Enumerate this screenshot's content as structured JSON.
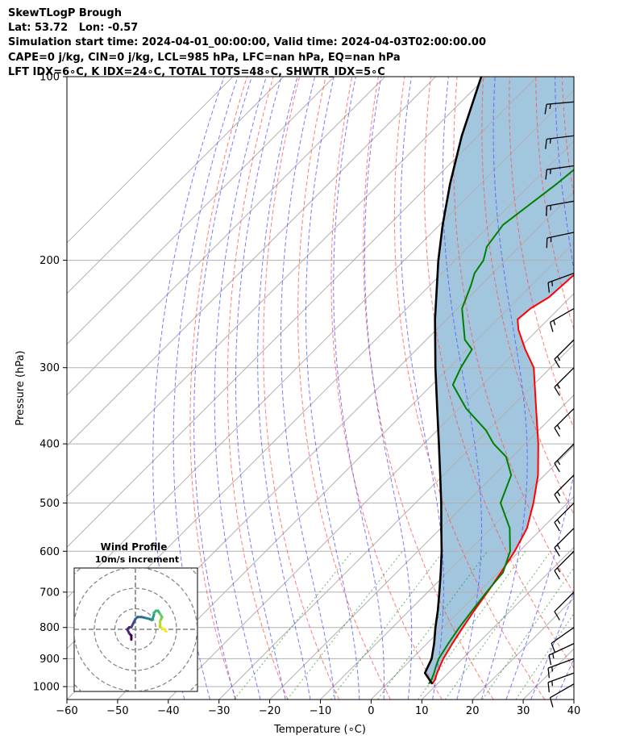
{
  "header": {
    "lines": [
      "SkewTLogP Brough",
      "Lat: 53.72   Lon: -0.57",
      "Simulation start time: 2024-04-01_00:00:00, Valid time: 2024-04-03T02:00:00.00",
      "CAPE=0 j/kg, CIN=0 j/kg, LCL=985 hPa, LFC=nan hPa, EQ=nan hPa",
      "LFT IDX=6∘C, K IDX=24∘C, TOTAL TOTS=48∘C, SHWTR_IDX=5∘C"
    ]
  },
  "chart_data": [
    {
      "type": "line",
      "subtype": "skew-t log-p",
      "xlabel": "Temperature (∘C)",
      "ylabel": "Pressure (hPa)",
      "xlim": [
        -60,
        40
      ],
      "ylim": [
        1050,
        100
      ],
      "y_scale": "log",
      "x_ticks": [
        -60,
        -50,
        -40,
        -30,
        -20,
        -10,
        0,
        10,
        20,
        30,
        40
      ],
      "y_ticks": [
        1000,
        900,
        800,
        700,
        600,
        500,
        400,
        300,
        200,
        100
      ],
      "grid": true,
      "series": [
        {
          "key": "temperature",
          "color": "#ff0000",
          "p": [
            990,
            975,
            950,
            925,
            900,
            850,
            800,
            750,
            700,
            650,
            600,
            550,
            500,
            450,
            400,
            350,
            300,
            280,
            260,
            250,
            240,
            230,
            200,
            175,
            150,
            125,
            100
          ],
          "t": [
            9,
            8.7,
            7.8,
            7.0,
            6.2,
            5.0,
            3.9,
            2.8,
            1.8,
            0.6,
            -0.9,
            -3.0,
            -6.7,
            -11.3,
            -17.4,
            -24.8,
            -33.3,
            -38.6,
            -43.8,
            -46.0,
            -45.6,
            -44.2,
            -43.3,
            -45.2,
            -47.5,
            -51.0,
            -55.0
          ]
        },
        {
          "key": "dewpoint",
          "color": "#008000",
          "p": [
            990,
            975,
            950,
            925,
            900,
            850,
            800,
            750,
            700,
            650,
            600,
            550,
            500,
            450,
            420,
            400,
            380,
            350,
            320,
            300,
            280,
            270,
            240,
            220,
            210,
            200,
            190,
            175,
            150,
            125,
            100
          ],
          "t": [
            8.3,
            8.0,
            7.2,
            6.2,
            5.3,
            4.2,
            3.2,
            2.4,
            1.6,
            1.0,
            -1.8,
            -6.4,
            -13.2,
            -16.6,
            -21.2,
            -26.2,
            -30.4,
            -38.6,
            -45.9,
            -47.7,
            -49.1,
            -52.4,
            -59.1,
            -61.9,
            -63.6,
            -64.4,
            -66.4,
            -67.5,
            -65.0,
            -63.0,
            -60.0
          ]
        },
        {
          "key": "parcel",
          "color": "#000000",
          "p": [
            990,
            950,
            900,
            850,
            800,
            750,
            700,
            650,
            600,
            550,
            500,
            450,
            400,
            350,
            300,
            250,
            200,
            175,
            150,
            125,
            100
          ],
          "t": [
            9,
            5.4,
            3.9,
            1.4,
            -1.5,
            -4.4,
            -7.7,
            -11.3,
            -15.3,
            -19.9,
            -24.9,
            -30.6,
            -37.0,
            -44.3,
            -52.7,
            -62.3,
            -73.3,
            -79.4,
            -86.0,
            -93.2,
            -101.0
          ]
        }
      ],
      "shaded_area": {
        "between": [
          "parcel",
          "temperature"
        ],
        "color": "#a3c6df"
      },
      "wind_barbs": [
        {
          "p": 990,
          "dir": 240,
          "speed_kt": 10
        },
        {
          "p": 950,
          "dir": 250,
          "speed_kt": 15
        },
        {
          "p": 900,
          "dir": 250,
          "speed_kt": 15
        },
        {
          "p": 850,
          "dir": 245,
          "speed_kt": 15
        },
        {
          "p": 800,
          "dir": 235,
          "speed_kt": 10
        },
        {
          "p": 700,
          "dir": 225,
          "speed_kt": 10
        },
        {
          "p": 600,
          "dir": 225,
          "speed_kt": 15
        },
        {
          "p": 550,
          "dir": 225,
          "speed_kt": 15
        },
        {
          "p": 500,
          "dir": 225,
          "speed_kt": 15
        },
        {
          "p": 450,
          "dir": 225,
          "speed_kt": 15
        },
        {
          "p": 400,
          "dir": 225,
          "speed_kt": 15
        },
        {
          "p": 350,
          "dir": 225,
          "speed_kt": 15
        },
        {
          "p": 300,
          "dir": 225,
          "speed_kt": 15
        },
        {
          "p": 270,
          "dir": 225,
          "speed_kt": 15
        },
        {
          "p": 240,
          "dir": 240,
          "speed_kt": 15
        },
        {
          "p": 210,
          "dir": 250,
          "speed_kt": 15
        },
        {
          "p": 180,
          "dir": 258,
          "speed_kt": 15
        },
        {
          "p": 160,
          "dir": 260,
          "speed_kt": 15
        },
        {
          "p": 140,
          "dir": 262,
          "speed_kt": 15
        },
        {
          "p": 125,
          "dir": 263,
          "speed_kt": 15
        },
        {
          "p": 110,
          "dir": 265,
          "speed_kt": 15
        }
      ]
    },
    {
      "type": "scatter",
      "subtype": "hodograph",
      "title": "Wind Profile",
      "subtitle": "10m/s increment",
      "ring_step": 10,
      "rings": 4,
      "colormap": "viridis",
      "points": [
        [
          -2,
          -5
        ],
        [
          -2,
          -4
        ],
        [
          -2,
          -3
        ],
        [
          -3,
          -2
        ],
        [
          -4,
          0
        ],
        [
          -3,
          1
        ],
        [
          -2,
          1
        ],
        [
          -1,
          3
        ],
        [
          0,
          5
        ],
        [
          1,
          6
        ],
        [
          3,
          6
        ],
        [
          5,
          5.5
        ],
        [
          7,
          5
        ],
        [
          8,
          4.5
        ],
        [
          8.5,
          5.5
        ],
        [
          9,
          7
        ],
        [
          9,
          8
        ],
        [
          10,
          9
        ],
        [
          11,
          9
        ],
        [
          12,
          7.5
        ],
        [
          13,
          6
        ],
        [
          12,
          4
        ],
        [
          12,
          2
        ],
        [
          12,
          1
        ],
        [
          13,
          0.5
        ],
        [
          14,
          0
        ],
        [
          15,
          -1
        ]
      ]
    }
  ]
}
